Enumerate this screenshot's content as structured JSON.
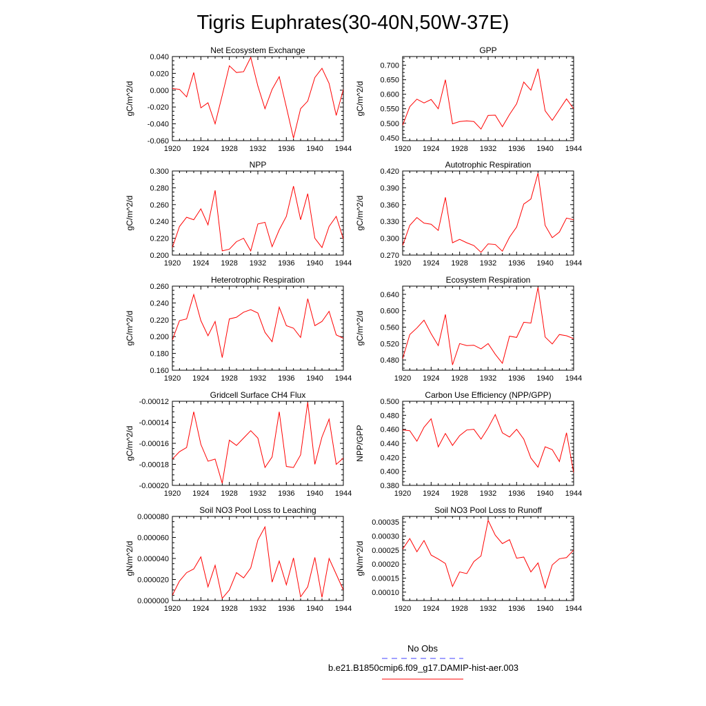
{
  "figure": {
    "title": "Tigris Euphrates(30-40N,50W-37E)"
  },
  "legend": {
    "entries": [
      {
        "label": "No Obs",
        "color": "#4040ff",
        "style": "dashed"
      },
      {
        "label": "b.e21.B1850cmip6.f09_g17.DAMIP-hist-aer.003",
        "color": "#ff0000",
        "style": "solid"
      }
    ]
  },
  "chart_data": [
    {
      "type": "line",
      "title": "Net Ecosystem Exchange",
      "ylabel": "gC/m^2/d",
      "xlim": [
        1920,
        1944
      ],
      "ylim": [
        -0.06,
        0.04
      ],
      "xticks": [
        1920,
        1924,
        1928,
        1932,
        1936,
        1940,
        1944
      ],
      "yticks": [
        "-0.060",
        "-0.040",
        "-0.020",
        "0.000",
        "0.020",
        "0.040"
      ],
      "yticks_values": [
        -0.06,
        -0.04,
        -0.02,
        0.0,
        0.02,
        0.04
      ],
      "series": [
        {
          "x": [
            1920,
            1921,
            1922,
            1923,
            1924,
            1925,
            1926,
            1927,
            1928,
            1929,
            1930,
            1931,
            1932,
            1933,
            1934,
            1935,
            1936,
            1937,
            1938,
            1939,
            1940,
            1941,
            1942,
            1943,
            1944
          ],
          "values": [
            0.002,
            0.001,
            -0.008,
            0.021,
            -0.021,
            -0.015,
            -0.04,
            -0.006,
            0.029,
            0.021,
            0.022,
            0.039,
            0.005,
            -0.022,
            0.001,
            0.016,
            -0.02,
            -0.057,
            -0.022,
            -0.013,
            0.015,
            0.026,
            0.008,
            -0.03,
            0.001
          ]
        }
      ]
    },
    {
      "type": "line",
      "title": "GPP",
      "ylabel": "gC/m^2/d",
      "xlim": [
        1920,
        1944
      ],
      "ylim": [
        0.44,
        0.73
      ],
      "xticks": [
        1920,
        1924,
        1928,
        1932,
        1936,
        1940,
        1944
      ],
      "yticks": [
        "0.450",
        "0.500",
        "0.550",
        "0.600",
        "0.650",
        "0.700"
      ],
      "yticks_values": [
        0.45,
        0.5,
        0.55,
        0.6,
        0.65,
        0.7
      ],
      "series": [
        {
          "x": [
            1920,
            1921,
            1922,
            1923,
            1924,
            1925,
            1926,
            1927,
            1928,
            1929,
            1930,
            1931,
            1932,
            1933,
            1934,
            1935,
            1936,
            1937,
            1938,
            1939,
            1940,
            1941,
            1942,
            1943,
            1944
          ],
          "values": [
            0.493,
            0.557,
            0.583,
            0.57,
            0.582,
            0.55,
            0.65,
            0.498,
            0.506,
            0.508,
            0.506,
            0.48,
            0.527,
            0.528,
            0.488,
            0.53,
            0.567,
            0.642,
            0.614,
            0.688,
            0.543,
            0.51,
            0.547,
            0.584,
            0.55
          ]
        }
      ]
    },
    {
      "type": "line",
      "title": "NPP",
      "ylabel": "gC/m^2/d",
      "xlim": [
        1920,
        1944
      ],
      "ylim": [
        0.2,
        0.3
      ],
      "xticks": [
        1920,
        1924,
        1928,
        1932,
        1936,
        1940,
        1944
      ],
      "yticks": [
        "0.200",
        "0.220",
        "0.240",
        "0.260",
        "0.280",
        "0.300"
      ],
      "yticks_values": [
        0.2,
        0.22,
        0.24,
        0.26,
        0.28,
        0.3
      ],
      "series": [
        {
          "x": [
            1920,
            1921,
            1922,
            1923,
            1924,
            1925,
            1926,
            1927,
            1928,
            1929,
            1930,
            1931,
            1932,
            1933,
            1934,
            1935,
            1936,
            1937,
            1938,
            1939,
            1940,
            1941,
            1942,
            1943,
            1944
          ],
          "values": [
            0.209,
            0.234,
            0.245,
            0.242,
            0.255,
            0.236,
            0.277,
            0.205,
            0.207,
            0.216,
            0.22,
            0.205,
            0.237,
            0.239,
            0.21,
            0.23,
            0.246,
            0.282,
            0.242,
            0.273,
            0.22,
            0.209,
            0.234,
            0.246,
            0.219
          ]
        }
      ]
    },
    {
      "type": "line",
      "title": "Autotrophic Respiration",
      "ylabel": "gC/m^2/d",
      "xlim": [
        1920,
        1944
      ],
      "ylim": [
        0.27,
        0.42
      ],
      "xticks": [
        1920,
        1924,
        1928,
        1932,
        1936,
        1940,
        1944
      ],
      "yticks": [
        "0.270",
        "0.300",
        "0.330",
        "0.360",
        "0.390",
        "0.420"
      ],
      "yticks_values": [
        0.27,
        0.3,
        0.33,
        0.36,
        0.39,
        0.42
      ],
      "series": [
        {
          "x": [
            1920,
            1921,
            1922,
            1923,
            1924,
            1925,
            1926,
            1927,
            1928,
            1929,
            1930,
            1931,
            1932,
            1933,
            1934,
            1935,
            1936,
            1937,
            1938,
            1939,
            1940,
            1941,
            1942,
            1943,
            1944
          ],
          "values": [
            0.287,
            0.323,
            0.337,
            0.327,
            0.325,
            0.314,
            0.373,
            0.292,
            0.298,
            0.292,
            0.287,
            0.275,
            0.29,
            0.289,
            0.277,
            0.302,
            0.32,
            0.361,
            0.37,
            0.416,
            0.323,
            0.301,
            0.311,
            0.336,
            0.333
          ]
        }
      ]
    },
    {
      "type": "line",
      "title": "Heterotrophic Respiration",
      "ylabel": "gC/m^2/d",
      "xlim": [
        1920,
        1944
      ],
      "ylim": [
        0.16,
        0.26
      ],
      "xticks": [
        1920,
        1924,
        1928,
        1932,
        1936,
        1940,
        1944
      ],
      "yticks": [
        "0.160",
        "0.180",
        "0.200",
        "0.220",
        "0.240",
        "0.260"
      ],
      "yticks_values": [
        0.16,
        0.18,
        0.2,
        0.22,
        0.24,
        0.26
      ],
      "series": [
        {
          "x": [
            1920,
            1921,
            1922,
            1923,
            1924,
            1925,
            1926,
            1927,
            1928,
            1929,
            1930,
            1931,
            1932,
            1933,
            1934,
            1935,
            1936,
            1937,
            1938,
            1939,
            1940,
            1941,
            1942,
            1943,
            1944
          ],
          "values": [
            0.196,
            0.219,
            0.221,
            0.25,
            0.219,
            0.201,
            0.218,
            0.175,
            0.221,
            0.223,
            0.229,
            0.232,
            0.228,
            0.205,
            0.194,
            0.235,
            0.213,
            0.21,
            0.199,
            0.245,
            0.213,
            0.218,
            0.23,
            0.202,
            0.198
          ]
        }
      ]
    },
    {
      "type": "line",
      "title": "Ecosystem Respiration",
      "ylabel": "gC/m^2/d",
      "xlim": [
        1920,
        1944
      ],
      "ylim": [
        0.455,
        0.66
      ],
      "xticks": [
        1920,
        1924,
        1928,
        1932,
        1936,
        1940,
        1944
      ],
      "yticks": [
        "0.480",
        "0.520",
        "0.560",
        "0.600",
        "0.640"
      ],
      "yticks_values": [
        0.48,
        0.52,
        0.56,
        0.6,
        0.64
      ],
      "series": [
        {
          "x": [
            1920,
            1921,
            1922,
            1923,
            1924,
            1925,
            1926,
            1927,
            1928,
            1929,
            1930,
            1931,
            1932,
            1933,
            1934,
            1935,
            1936,
            1937,
            1938,
            1939,
            1940,
            1941,
            1942,
            1943,
            1944
          ],
          "values": [
            0.483,
            0.542,
            0.558,
            0.577,
            0.544,
            0.515,
            0.591,
            0.468,
            0.52,
            0.515,
            0.516,
            0.507,
            0.52,
            0.494,
            0.472,
            0.538,
            0.535,
            0.572,
            0.57,
            0.657,
            0.536,
            0.519,
            0.542,
            0.539,
            0.532
          ]
        }
      ]
    },
    {
      "type": "line",
      "title": "Gridcell Surface CH4 Flux",
      "ylabel": "gC/m^2/d",
      "xlim": [
        1920,
        1944
      ],
      "ylim": [
        -0.0002,
        -0.00012
      ],
      "xticks": [
        1920,
        1924,
        1928,
        1932,
        1936,
        1940,
        1944
      ],
      "yticks": [
        "-0.00020",
        "-0.00018",
        "-0.00016",
        "-0.00014",
        "-0.00012"
      ],
      "yticks_values": [
        -0.0002,
        -0.00018,
        -0.00016,
        -0.00014,
        -0.00012
      ],
      "series": [
        {
          "x": [
            1920,
            1921,
            1922,
            1923,
            1924,
            1925,
            1926,
            1927,
            1928,
            1929,
            1930,
            1931,
            1932,
            1933,
            1934,
            1935,
            1936,
            1937,
            1938,
            1939,
            1940,
            1941,
            1942,
            1943,
            1944
          ],
          "values": [
            -0.000175,
            -0.000168,
            -0.000164,
            -0.00013,
            -0.000161,
            -0.000177,
            -0.000175,
            -0.000198,
            -0.000157,
            -0.000162,
            -0.000155,
            -0.000148,
            -0.000155,
            -0.000183,
            -0.000173,
            -0.00013,
            -0.000182,
            -0.000183,
            -0.000171,
            -0.000121,
            -0.00018,
            -0.000154,
            -0.000137,
            -0.00018,
            -0.000174
          ]
        }
      ]
    },
    {
      "type": "line",
      "title": "Carbon Use Efficiency (NPP/GPP)",
      "ylabel": "NPP/GPP",
      "xlim": [
        1920,
        1944
      ],
      "ylim": [
        0.38,
        0.5
      ],
      "xticks": [
        1920,
        1924,
        1928,
        1932,
        1936,
        1940,
        1944
      ],
      "yticks": [
        "0.380",
        "0.400",
        "0.420",
        "0.440",
        "0.460",
        "0.480",
        "0.500"
      ],
      "yticks_values": [
        0.38,
        0.4,
        0.42,
        0.44,
        0.46,
        0.48,
        0.5
      ],
      "series": [
        {
          "x": [
            1920,
            1921,
            1922,
            1923,
            1924,
            1925,
            1926,
            1927,
            1928,
            1929,
            1930,
            1931,
            1932,
            1933,
            1934,
            1935,
            1936,
            1937,
            1938,
            1939,
            1940,
            1941,
            1942,
            1943,
            1944
          ],
          "values": [
            0.459,
            0.458,
            0.443,
            0.463,
            0.475,
            0.435,
            0.454,
            0.437,
            0.451,
            0.459,
            0.46,
            0.446,
            0.462,
            0.481,
            0.455,
            0.449,
            0.46,
            0.446,
            0.419,
            0.406,
            0.435,
            0.431,
            0.414,
            0.455,
            0.398
          ]
        }
      ]
    },
    {
      "type": "line",
      "title": "Soil NO3 Pool Loss to Leaching",
      "ylabel": "gN/m^2/d",
      "xlim": [
        1920,
        1944
      ],
      "ylim": [
        0.0,
        8e-05
      ],
      "xticks": [
        1920,
        1924,
        1928,
        1932,
        1936,
        1940,
        1944
      ],
      "yticks": [
        "0.000000",
        "0.000020",
        "0.000040",
        "0.000060",
        "0.000080"
      ],
      "yticks_values": [
        0.0,
        2e-05,
        4e-05,
        6e-05,
        8e-05
      ],
      "series": [
        {
          "x": [
            1920,
            1921,
            1922,
            1923,
            1924,
            1925,
            1926,
            1927,
            1928,
            1929,
            1930,
            1931,
            1932,
            1933,
            1934,
            1935,
            1936,
            1937,
            1938,
            1939,
            1940,
            1941,
            1942,
            1943,
            1944
          ],
          "values": [
            5e-06,
            1.85e-05,
            2.65e-05,
            3e-05,
            4.15e-05,
            1.3e-05,
            3.35e-05,
            2e-06,
            1e-05,
            2.65e-05,
            2.15e-05,
            3.1e-05,
            5.75e-05,
            7e-05,
            1.75e-05,
            3.75e-05,
            1.5e-05,
            4.05e-05,
            3.5e-06,
            1.3e-05,
            4.1e-05,
            3e-06,
            4e-05,
            2.5e-05,
            1e-05
          ]
        }
      ]
    },
    {
      "type": "line",
      "title": "Soil NO3 Pool Loss to Runoff",
      "ylabel": "gN/m^2/d",
      "xlim": [
        1920,
        1944
      ],
      "ylim": [
        7e-05,
        0.00037
      ],
      "xticks": [
        1920,
        1924,
        1928,
        1932,
        1936,
        1940,
        1944
      ],
      "yticks": [
        "0.00010",
        "0.00015",
        "0.00020",
        "0.00025",
        "0.00030",
        "0.00035"
      ],
      "yticks_values": [
        0.0001,
        0.00015,
        0.0002,
        0.00025,
        0.0003,
        0.00035
      ],
      "series": [
        {
          "x": [
            1920,
            1921,
            1922,
            1923,
            1924,
            1925,
            1926,
            1927,
            1928,
            1929,
            1930,
            1931,
            1932,
            1933,
            1934,
            1935,
            1936,
            1937,
            1938,
            1939,
            1940,
            1941,
            1942,
            1943,
            1944
          ],
          "values": [
            0.000253,
            0.000291,
            0.000244,
            0.000284,
            0.000232,
            0.000218,
            0.000202,
            0.00012,
            0.000172,
            0.000166,
            0.000209,
            0.000229,
            0.000356,
            0.000303,
            0.000273,
            0.000287,
            0.000221,
            0.000225,
            0.000172,
            0.000204,
            0.000115,
            0.000197,
            0.000219,
            0.000223,
            0.00025
          ]
        }
      ]
    }
  ]
}
